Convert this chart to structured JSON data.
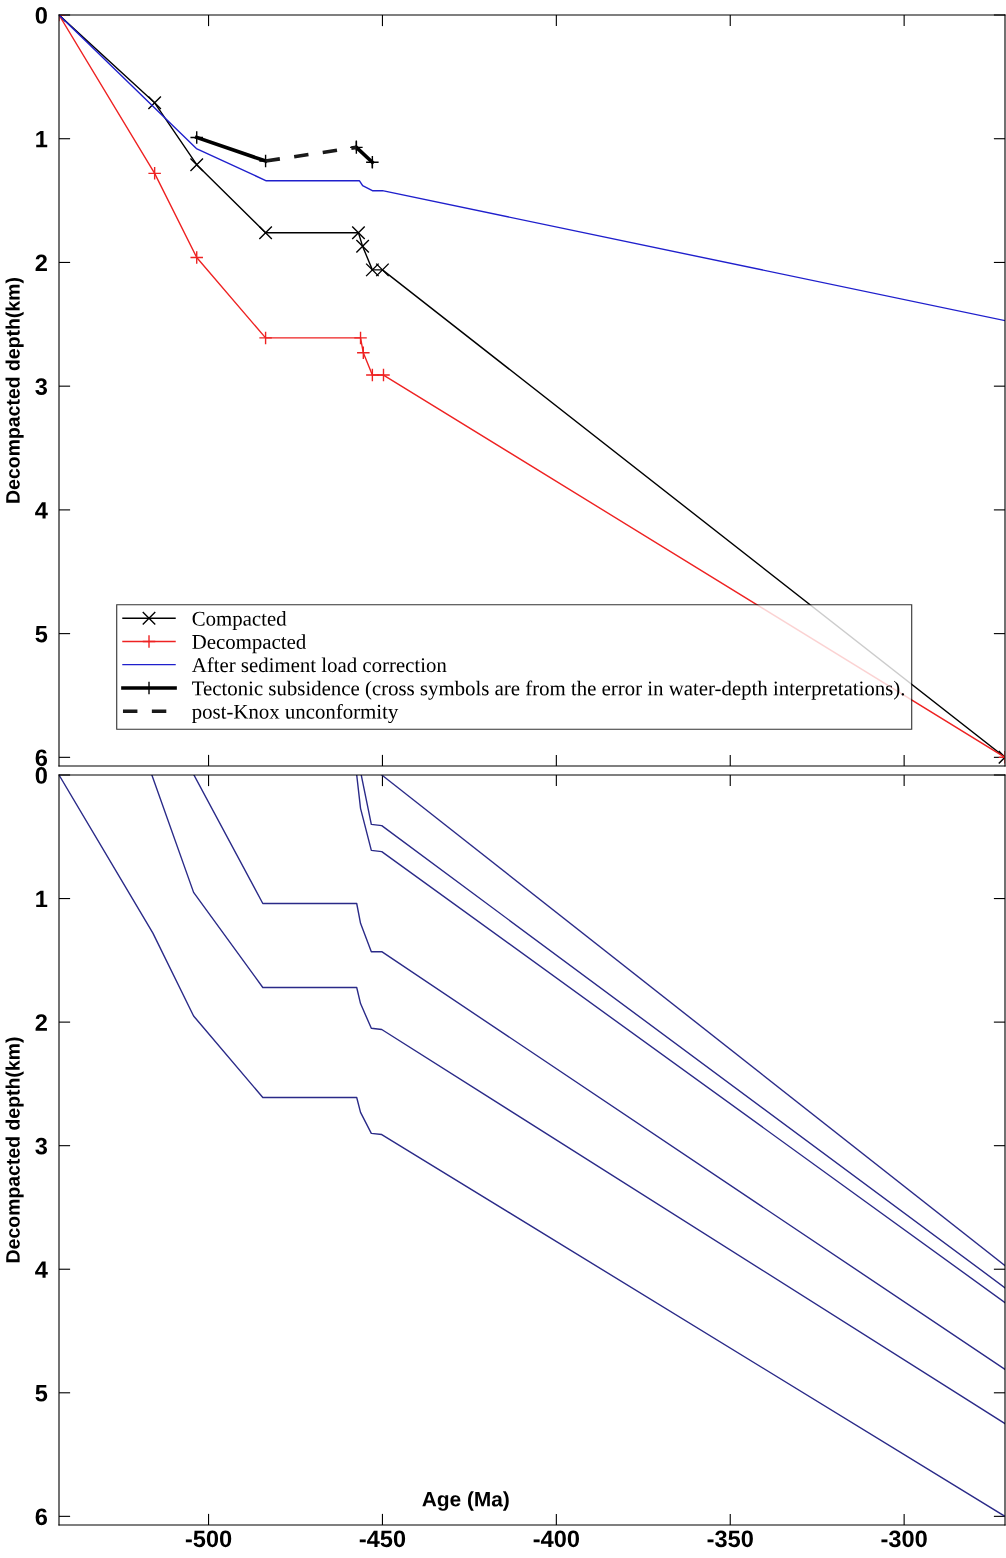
{
  "chart_data": [
    {
      "type": "line",
      "ylabel": "Decompacted depth(km)",
      "xlim": [
        -543,
        -271
      ],
      "ylim": [
        6.07,
        0
      ],
      "xticks": [
        -500,
        -450,
        -400,
        -350,
        -300
      ],
      "yticks": [
        0,
        1,
        2,
        3,
        4,
        5,
        6
      ],
      "tick_labels": "y",
      "grid": false,
      "legend": "bottom left",
      "series": [
        {
          "name": "Compacted",
          "color": "#000000",
          "marker": "cross",
          "line_style": "solid",
          "x": [
            -543,
            -515.5,
            -503.4,
            -483.6,
            -456.9,
            -455.7,
            -452.9,
            -450,
            -271
          ],
          "values": [
            0,
            0.71,
            1.21,
            1.76,
            1.76,
            1.87,
            2.06,
            2.06,
            6.0
          ]
        },
        {
          "name": "Decompacted",
          "color": "#ee2222",
          "marker": "plus",
          "line_style": "solid",
          "x": [
            -543,
            -515.5,
            -503.4,
            -483.6,
            -456.3,
            -455.5,
            -452.9,
            -449.7,
            -271
          ],
          "values": [
            0,
            1.28,
            1.96,
            2.61,
            2.61,
            2.73,
            2.91,
            2.91,
            6.0
          ]
        },
        {
          "name": "After sediment load correction",
          "color": "#1f1fcc",
          "marker": "none",
          "line_style": "solid",
          "x": [
            -543,
            -503.5,
            -483.4,
            -456.6,
            -455.7,
            -452.9,
            -450,
            -271
          ],
          "values": [
            0,
            1.08,
            1.34,
            1.34,
            1.38,
            1.42,
            1.42,
            2.47
          ]
        },
        {
          "name": "Tectonic subsidence (cross symbols are from the error in water-depth interpretations).",
          "color": "#000000",
          "marker": "plus",
          "line_style": "solid",
          "x": [
            -503.4,
            -483.6
          ],
          "values": [
            0.99,
            1.18
          ]
        },
        {
          "color": "#000000",
          "marker": "plus",
          "line_style": "solid",
          "x": [
            -457.5,
            -452.9
          ],
          "values": [
            1.07,
            1.19
          ],
          "errors": [
            [
              1.02,
              1.09
            ],
            [
              1.17,
              1.23
            ]
          ]
        },
        {
          "name": "post-Knox unconformity",
          "color": "#1a1a1a",
          "marker": "none",
          "line_style": "dashed",
          "x": [
            -483.6,
            -457.5
          ],
          "values": [
            1.18,
            1.07
          ]
        }
      ]
    },
    {
      "type": "line",
      "xlabel": "Age (Ma)",
      "ylabel": "Decompacted depth(km)",
      "xlim": [
        -543,
        -271
      ],
      "ylim": [
        6.07,
        0
      ],
      "xticks": [
        -500,
        -450,
        -400,
        -350,
        -300
      ],
      "yticks": [
        0,
        1,
        2,
        3,
        4,
        5,
        6
      ],
      "grid": false,
      "legend": false,
      "series": [
        {
          "color": "#2a2a88",
          "x": [
            -543,
            -516,
            -504.3,
            -484.4,
            -457.4,
            -456.3,
            -453.2,
            -450.2,
            -271
          ],
          "values": [
            0,
            1.28,
            1.95,
            2.61,
            2.61,
            2.73,
            2.9,
            2.91,
            6.0
          ]
        },
        {
          "color": "#2a2a88",
          "x": [
            -516.3,
            -504.3,
            -484.4,
            -457.4,
            -456.3,
            -453.2,
            -450.2,
            -271
          ],
          "values": [
            0,
            0.95,
            1.72,
            1.72,
            1.85,
            2.05,
            2.06,
            5.25
          ]
        },
        {
          "color": "#2a2a88",
          "x": [
            -504.2,
            -484.4,
            -457.4,
            -456.3,
            -453.2,
            -450.2,
            -271
          ],
          "values": [
            0,
            1.04,
            1.04,
            1.2,
            1.43,
            1.43,
            4.81
          ]
        },
        {
          "color": "#2a2a88",
          "x": [
            -457.4,
            -456.3,
            -453.2,
            -450.2,
            -271
          ],
          "values": [
            0,
            0.27,
            0.61,
            0.62,
            4.27
          ]
        },
        {
          "color": "#2a2a88",
          "x": [
            -456.1,
            -453.2,
            -450.2,
            -271
          ],
          "values": [
            0,
            0.4,
            0.41,
            4.15
          ]
        },
        {
          "color": "#2a2a88",
          "x": [
            -450.2,
            -271
          ],
          "values": [
            0,
            3.97
          ]
        }
      ]
    }
  ]
}
